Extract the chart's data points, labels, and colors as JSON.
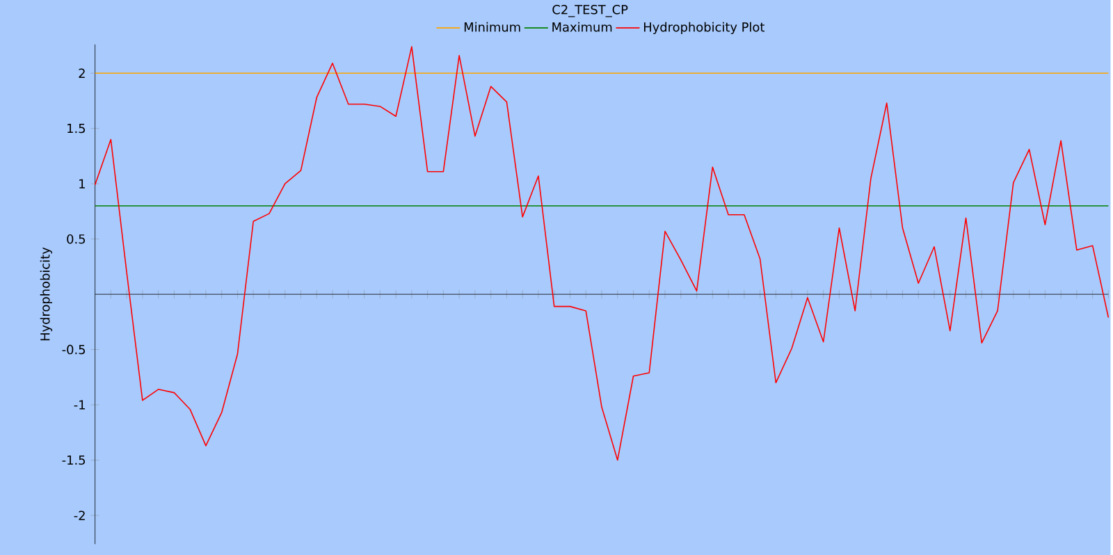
{
  "chart_data": {
    "type": "line",
    "title": "C2_TEST_CP",
    "ylabel": "Hydrophobicity",
    "categories": [
      null,
      null,
      null,
      null,
      null,
      null,
      null,
      null,
      null,
      null,
      null,
      null,
      null,
      null,
      null,
      null,
      null,
      null,
      null,
      null,
      null,
      null,
      null,
      null,
      null,
      null,
      null,
      null,
      null,
      null,
      null,
      null,
      null,
      null,
      null,
      null,
      null,
      null,
      null,
      null,
      null,
      null,
      null,
      null,
      null,
      null,
      null,
      null,
      null,
      null,
      null,
      null,
      null,
      null,
      null,
      null,
      null,
      null,
      null,
      null,
      null,
      null,
      null,
      null,
      null
    ],
    "series": [
      {
        "name": "Minimum",
        "color": "#ffa500",
        "values": [
          2,
          2,
          2,
          2,
          2,
          2,
          2,
          2,
          2,
          2,
          2,
          2,
          2,
          2,
          2,
          2,
          2,
          2,
          2,
          2,
          2,
          2,
          2,
          2,
          2,
          2,
          2,
          2,
          2,
          2,
          2,
          2,
          2,
          2,
          2,
          2,
          2,
          2,
          2,
          2,
          2,
          2,
          2,
          2,
          2,
          2,
          2,
          2,
          2,
          2,
          2,
          2,
          2,
          2,
          2,
          2,
          2,
          2,
          2,
          2,
          2,
          2,
          2,
          2,
          2
        ]
      },
      {
        "name": "Maximum",
        "color": "#008000",
        "values": [
          0.8,
          0.8,
          0.8,
          0.8,
          0.8,
          0.8,
          0.8,
          0.8,
          0.8,
          0.8,
          0.8,
          0.8,
          0.8,
          0.8,
          0.8,
          0.8,
          0.8,
          0.8,
          0.8,
          0.8,
          0.8,
          0.8,
          0.8,
          0.8,
          0.8,
          0.8,
          0.8,
          0.8,
          0.8,
          0.8,
          0.8,
          0.8,
          0.8,
          0.8,
          0.8,
          0.8,
          0.8,
          0.8,
          0.8,
          0.8,
          0.8,
          0.8,
          0.8,
          0.8,
          0.8,
          0.8,
          0.8,
          0.8,
          0.8,
          0.8,
          0.8,
          0.8,
          0.8,
          0.8,
          0.8,
          0.8,
          0.8,
          0.8,
          0.8,
          0.8,
          0.8,
          0.8,
          0.8,
          0.8,
          0.8
        ]
      },
      {
        "name": "Hydrophobicity Plot",
        "color": "#ff0000",
        "values": [
          0.99,
          1.4,
          0.2,
          -0.96,
          -0.86,
          -0.89,
          -1.04,
          -1.37,
          -1.07,
          -0.54,
          0.66,
          0.73,
          1.0,
          1.12,
          1.78,
          2.09,
          1.72,
          1.72,
          1.7,
          1.61,
          2.24,
          1.11,
          1.11,
          2.16,
          1.43,
          1.88,
          1.74,
          0.7,
          1.07,
          -0.11,
          -0.11,
          -0.15,
          -1.02,
          -1.5,
          -0.74,
          -0.71,
          0.57,
          0.31,
          0.03,
          1.15,
          0.72,
          0.72,
          0.32,
          -0.8,
          -0.49,
          -0.03,
          -0.43,
          0.6,
          -0.15,
          1.05,
          1.73,
          0.6,
          0.1,
          0.43,
          -0.33,
          0.69,
          -0.44,
          -0.15,
          1.01,
          1.31,
          0.63,
          1.39,
          0.4,
          0.44,
          -0.21
        ]
      }
    ],
    "ylim": [
      -2.26,
      2.26
    ],
    "yticks": [
      -2,
      -1.5,
      -1,
      -0.5,
      0.5,
      1,
      1.5,
      2
    ],
    "legend": "top",
    "grid": false,
    "marker": "none",
    "line_style": "solid",
    "tick_labels": "y"
  }
}
